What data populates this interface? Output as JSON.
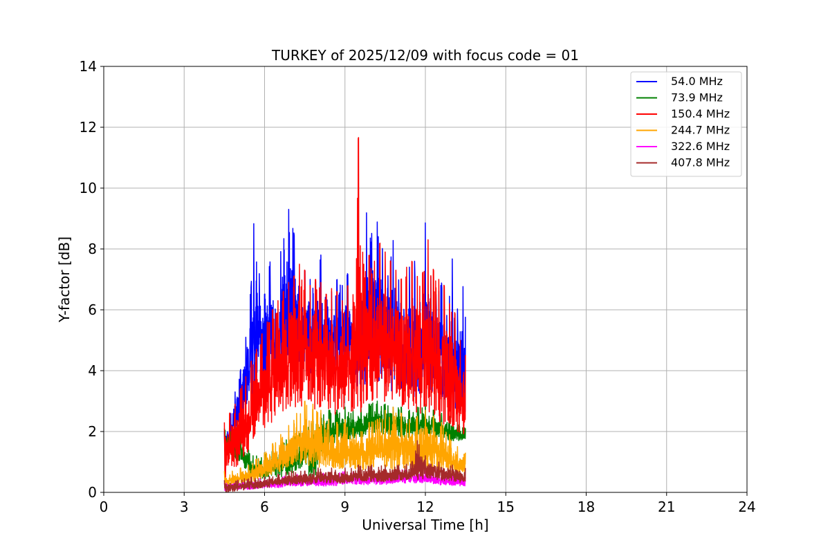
{
  "chart_data": {
    "type": "line",
    "title": "TURKEY of 2025/12/09 with focus code = 01",
    "xlabel": "Universal Time [h]",
    "ylabel": "Y-factor [dB]",
    "xlim": [
      0,
      24
    ],
    "ylim": [
      0,
      14
    ],
    "xticks": [
      0,
      3,
      6,
      9,
      12,
      15,
      18,
      21,
      24
    ],
    "yticks": [
      0,
      2,
      4,
      6,
      8,
      10,
      12,
      14
    ],
    "grid": true,
    "legend_position": "top-right",
    "series": [
      {
        "name": " 54.0 MHz",
        "color": "#0000ff",
        "x": [
          4.5,
          4.7,
          4.9,
          5.1,
          5.3,
          5.5,
          5.6,
          5.8,
          6.0,
          6.2,
          6.4,
          6.6,
          6.9,
          7.1,
          7.3,
          7.5,
          7.7,
          7.9,
          8.1,
          8.3,
          8.5,
          8.7,
          8.9,
          9.1,
          9.3,
          9.6,
          9.8,
          10.0,
          10.2,
          10.4,
          10.6,
          10.8,
          11.0,
          11.2,
          11.4,
          11.6,
          11.8,
          12.0,
          12.2,
          12.4,
          12.6,
          12.8,
          13.0,
          13.2,
          13.4,
          13.5
        ],
        "y_max": [
          2.0,
          2.4,
          3.3,
          4.0,
          5.1,
          6.8,
          8.9,
          7.2,
          6.5,
          7.6,
          6.0,
          7.9,
          9.3,
          8.5,
          6.8,
          7.3,
          7.0,
          6.9,
          7.8,
          6.3,
          6.6,
          7.0,
          6.8,
          7.2,
          6.1,
          6.2,
          9.2,
          8.5,
          8.9,
          8.0,
          7.1,
          8.3,
          7.0,
          6.0,
          7.4,
          7.6,
          6.2,
          8.9,
          7.1,
          6.5,
          6.9,
          5.8,
          7.7,
          6.0,
          6.8,
          5.7
        ],
        "y_min": [
          1.2,
          1.6,
          2.0,
          2.3,
          2.7,
          3.0,
          3.3,
          3.5,
          3.6,
          3.8,
          3.8,
          3.9,
          4.0,
          4.1,
          4.2,
          4.0,
          3.9,
          4.0,
          4.1,
          4.0,
          3.8,
          3.9,
          4.0,
          3.9,
          3.6,
          3.4,
          3.5,
          3.6,
          3.7,
          3.5,
          3.4,
          3.3,
          3.4,
          3.3,
          3.2,
          3.1,
          3.2,
          3.3,
          3.2,
          3.1,
          3.0,
          2.9,
          2.8,
          2.7,
          2.6,
          2.4
        ]
      },
      {
        "name": " 73.9 MHz",
        "color": "#008000",
        "x": [
          4.5,
          4.8,
          5.1,
          5.4,
          5.7,
          6.0,
          6.3,
          6.6,
          6.9,
          7.2,
          7.5,
          7.8,
          8.1,
          8.4,
          8.7,
          9.0,
          9.3,
          9.6,
          9.9,
          10.2,
          10.5,
          10.8,
          11.1,
          11.4,
          11.7,
          12.0,
          12.3,
          12.6,
          12.9,
          13.2,
          13.5
        ],
        "y_max": [
          2.1,
          2.0,
          1.9,
          1.4,
          1.2,
          1.3,
          1.4,
          1.6,
          1.8,
          2.0,
          2.2,
          2.4,
          2.6,
          2.7,
          2.7,
          2.8,
          2.7,
          2.8,
          2.9,
          3.0,
          2.9,
          2.8,
          2.8,
          2.7,
          2.8,
          2.9,
          2.7,
          2.6,
          2.5,
          2.3,
          2.1
        ],
        "y_min": [
          1.5,
          1.2,
          0.9,
          0.6,
          0.4,
          0.4,
          0.5,
          0.5,
          0.6,
          0.7,
          0.9,
          0.2,
          1.3,
          1.5,
          1.6,
          1.7,
          1.7,
          1.8,
          1.9,
          2.0,
          1.9,
          1.9,
          1.8,
          1.8,
          1.8,
          1.9,
          1.8,
          1.8,
          1.7,
          1.7,
          1.7
        ]
      },
      {
        "name": "150.4 MHz",
        "color": "#ff0000",
        "x": [
          4.5,
          4.7,
          4.9,
          5.1,
          5.3,
          5.5,
          5.7,
          5.9,
          6.1,
          6.3,
          6.5,
          6.7,
          6.9,
          7.1,
          7.3,
          7.5,
          7.7,
          7.9,
          8.1,
          8.3,
          8.5,
          8.7,
          8.9,
          9.1,
          9.3,
          9.5,
          9.7,
          9.9,
          10.1,
          10.3,
          10.5,
          10.7,
          10.9,
          11.1,
          11.3,
          11.5,
          11.7,
          11.9,
          12.1,
          12.3,
          12.5,
          12.7,
          12.9,
          13.1,
          13.3,
          13.5
        ],
        "y_max": [
          2.3,
          2.6,
          2.9,
          3.4,
          3.8,
          4.3,
          4.7,
          5.2,
          5.6,
          6.0,
          6.3,
          6.6,
          6.9,
          7.1,
          7.5,
          7.3,
          6.8,
          7.0,
          6.9,
          6.5,
          6.7,
          6.6,
          6.3,
          6.8,
          6.5,
          11.8,
          7.5,
          7.8,
          7.6,
          8.2,
          7.9,
          7.6,
          7.3,
          7.0,
          7.4,
          7.6,
          7.1,
          7.2,
          8.3,
          7.3,
          7.0,
          6.8,
          6.2,
          5.9,
          5.0,
          4.5
        ],
        "y_min": [
          0.4,
          0.6,
          0.8,
          1.0,
          1.2,
          1.5,
          1.7,
          2.0,
          2.1,
          2.3,
          2.5,
          2.6,
          2.7,
          2.8,
          2.8,
          2.7,
          2.8,
          2.7,
          2.8,
          2.7,
          2.5,
          2.6,
          2.6,
          2.7,
          2.5,
          2.4,
          2.6,
          2.8,
          3.0,
          3.0,
          2.9,
          2.8,
          2.7,
          2.6,
          2.6,
          2.5,
          2.5,
          2.6,
          2.5,
          2.4,
          2.3,
          2.2,
          2.1,
          2.0,
          1.9,
          1.8
        ]
      },
      {
        "name": "244.7 MHz",
        "color": "#ffa500",
        "x": [
          4.5,
          4.8,
          5.1,
          5.4,
          5.7,
          6.0,
          6.3,
          6.6,
          6.9,
          7.2,
          7.5,
          7.8,
          8.1,
          8.4,
          8.7,
          9.0,
          9.3,
          9.6,
          9.9,
          10.2,
          10.5,
          10.8,
          11.1,
          11.4,
          11.7,
          12.0,
          12.3,
          12.6,
          12.9,
          13.2,
          13.5
        ],
        "y_max": [
          0.7,
          0.7,
          0.8,
          0.9,
          1.1,
          1.3,
          1.6,
          1.9,
          2.2,
          2.6,
          3.0,
          2.9,
          2.7,
          2.4,
          2.3,
          2.4,
          2.1,
          2.0,
          2.3,
          2.4,
          2.7,
          2.8,
          2.6,
          2.4,
          2.5,
          2.7,
          2.5,
          2.3,
          1.9,
          1.5,
          1.3
        ],
        "y_min": [
          0.2,
          0.2,
          0.3,
          0.3,
          0.4,
          0.5,
          0.6,
          0.7,
          0.8,
          0.9,
          0.9,
          0.8,
          0.8,
          0.8,
          0.7,
          0.8,
          0.8,
          0.7,
          0.8,
          0.8,
          0.7,
          0.7,
          0.7,
          0.7,
          0.6,
          0.7,
          0.6,
          0.6,
          0.6,
          0.6,
          0.6
        ]
      },
      {
        "name": "322.6 MHz",
        "color": "#ff00ff",
        "x": [
          4.5,
          5.0,
          5.5,
          6.0,
          6.5,
          7.0,
          7.5,
          8.0,
          8.5,
          9.0,
          9.5,
          10.0,
          10.5,
          11.0,
          11.5,
          12.0,
          12.5,
          13.0,
          13.5
        ],
        "y_max": [
          0.3,
          0.4,
          0.4,
          0.5,
          0.5,
          0.6,
          0.6,
          0.6,
          0.7,
          0.7,
          0.7,
          0.7,
          0.7,
          0.8,
          0.8,
          0.7,
          0.6,
          0.6,
          0.5
        ],
        "y_min": [
          0.05,
          0.1,
          0.1,
          0.15,
          0.15,
          0.2,
          0.2,
          0.2,
          0.2,
          0.25,
          0.25,
          0.25,
          0.25,
          0.3,
          0.3,
          0.3,
          0.25,
          0.2,
          0.2
        ]
      },
      {
        "name": "407.8 MHz",
        "color": "#a52a2a",
        "x": [
          4.5,
          5.0,
          5.5,
          6.0,
          6.5,
          7.0,
          7.5,
          8.0,
          8.5,
          9.0,
          9.5,
          10.0,
          10.5,
          11.0,
          11.5,
          11.7,
          12.0,
          12.5,
          13.0,
          13.5
        ],
        "y_max": [
          0.4,
          0.4,
          0.5,
          0.5,
          0.6,
          0.7,
          0.7,
          0.8,
          0.8,
          0.8,
          0.9,
          0.9,
          0.9,
          0.9,
          1.0,
          1.7,
          1.2,
          1.0,
          0.9,
          0.8
        ],
        "y_min": [
          0.0,
          0.05,
          0.1,
          0.15,
          0.2,
          0.25,
          0.25,
          0.3,
          0.3,
          0.3,
          0.35,
          0.35,
          0.35,
          0.4,
          0.4,
          0.4,
          0.45,
          0.4,
          0.35,
          0.3
        ]
      }
    ]
  }
}
